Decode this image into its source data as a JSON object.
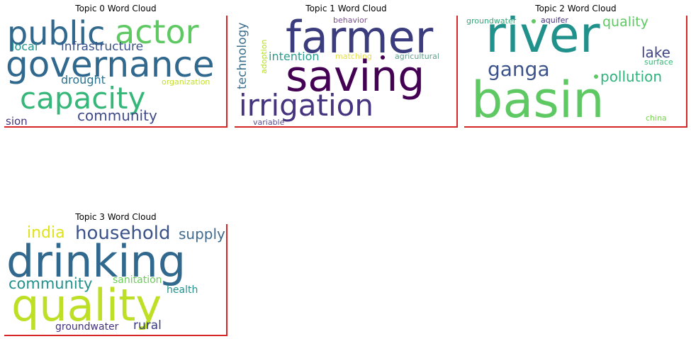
{
  "panels": [
    {
      "title": "Topic 0 Word Cloud",
      "words": [
        "public",
        "actor",
        "governance",
        "local",
        "infrastructure",
        "drought",
        "organization",
        "capacity",
        "community",
        "sion"
      ]
    },
    {
      "title": "Topic 1 Word Cloud",
      "words": [
        "behavior",
        "technology",
        "farmer",
        "adoption",
        "intention",
        "matching",
        "agricultural",
        "saving",
        "irrigation",
        "variable"
      ]
    },
    {
      "title": "Topic 2 Word Cloud",
      "words": [
        "groundwater",
        "aquifer",
        "quality",
        "river",
        "lake",
        "ganga",
        "surface",
        "pollution",
        "basin",
        "china"
      ]
    },
    {
      "title": "Topic 3 Word Cloud",
      "words": [
        "india",
        "household",
        "supply",
        "drinking",
        "community",
        "sanitation",
        "health",
        "quality",
        "groundwater",
        "rural"
      ]
    }
  ],
  "colors": {
    "frame": "#d62728",
    "viridis_dark": "#440154",
    "viridis_purple": "#3b528b",
    "viridis_blue": "#2c728e",
    "viridis_teal": "#21918c",
    "viridis_green": "#5ec962",
    "viridis_yellow": "#c2df23"
  }
}
